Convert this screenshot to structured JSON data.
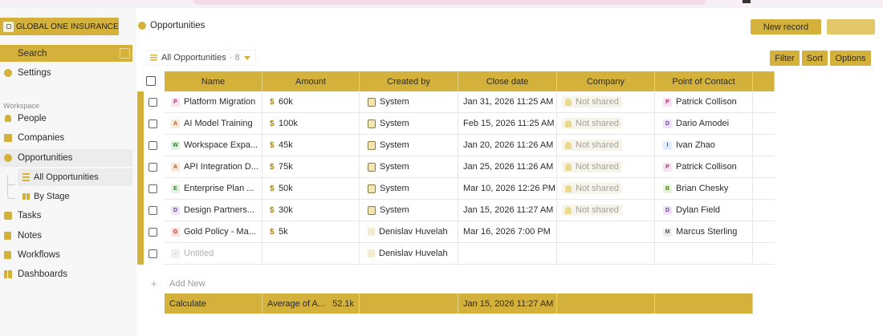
{
  "workspace": {
    "name": "GLOBAL ONE INSURANCE"
  },
  "sidebar": {
    "search_label": "Search",
    "settings_label": "Settings",
    "section_label": "Workspace",
    "items": [
      "People",
      "Companies",
      "Opportunities"
    ],
    "subviews": [
      "All Opportunities",
      "By Stage"
    ],
    "items2": [
      "Tasks",
      "Notes",
      "Workflows",
      "Dashboards"
    ]
  },
  "header": {
    "breadcrumb": "Opportunities",
    "new_record": "New record"
  },
  "view": {
    "name": "All Opportunities",
    "count": "· 8",
    "filter": "Filter",
    "sort": "Sort",
    "options": "Options"
  },
  "columns": [
    "Name",
    "Amount",
    "Created by",
    "Close date",
    "Company",
    "Point of Contact"
  ],
  "rows": [
    {
      "initial": "P",
      "name": "Platform Migration",
      "amount": "60k",
      "created_by": "System",
      "close_date": "Jan 31, 2026 11:25 AM",
      "company": "Not shared",
      "contact_initial": "P",
      "contact": "Patrick Collison"
    },
    {
      "initial": "A",
      "name": "AI Model Training",
      "amount": "100k",
      "created_by": "System",
      "close_date": "Feb 15, 2026 11:25 AM",
      "company": "Not shared",
      "contact_initial": "D",
      "contact": "Dario Amodei"
    },
    {
      "initial": "W",
      "name": "Workspace Expa...",
      "amount": "45k",
      "created_by": "System",
      "close_date": "Jan 20, 2026 11:26 AM",
      "company": "Not shared",
      "contact_initial": "I",
      "contact": "Ivan Zhao"
    },
    {
      "initial": "A",
      "name": "API Integration D...",
      "amount": "75k",
      "created_by": "System",
      "close_date": "Jan 25, 2026 11:26 AM",
      "company": "Not shared",
      "contact_initial": "P",
      "contact": "Patrick Collison"
    },
    {
      "initial": "E",
      "name": "Enterprise Plan ...",
      "amount": "50k",
      "created_by": "System",
      "close_date": "Mar 10, 2026 12:26 PM",
      "company": "Not shared",
      "contact_initial": "B",
      "contact": "Brian Chesky"
    },
    {
      "initial": "D",
      "name": "Design Partners...",
      "amount": "30k",
      "created_by": "System",
      "close_date": "Jan 15, 2026 11:27 AM",
      "company": "Not shared",
      "contact_initial": "D",
      "contact": "Dylan Field"
    },
    {
      "initial": "G",
      "name": "Gold Policy - Ma...",
      "amount": "5k",
      "created_by": "Denislav Huvelah",
      "close_date": "Mar 16, 2026 7:00 PM",
      "company": "",
      "contact_initial": "M",
      "contact": "Marcus Sterling"
    },
    {
      "initial": "-",
      "name": "Untitled",
      "amount": "",
      "created_by": "Denislav Huvelah",
      "close_date": "",
      "company": "",
      "contact_initial": "",
      "contact": ""
    }
  ],
  "add_new": "Add New",
  "calc": {
    "label": "Calculate",
    "amount_label": "Average of A...",
    "amount_value": "52.1k",
    "close_date": "Jan 15, 2026 11:27 AM"
  },
  "currency_symbol": "$",
  "badge_colors": {
    "P": [
      "#f8e3f0",
      "#a8306f"
    ],
    "A": [
      "#fde7d6",
      "#b3561a"
    ],
    "W": [
      "#e1f3e1",
      "#2f7a35"
    ],
    "E": [
      "#e4f2e4",
      "#367a3c"
    ],
    "D": [
      "#efe3fb",
      "#6a3aa8"
    ],
    "G": [
      "#fde2e2",
      "#b22d2d"
    ],
    "I": [
      "#e0ecfb",
      "#2f5fa8"
    ],
    "B": [
      "#e7f3df",
      "#4b7a26"
    ],
    "M": [
      "#eeeeee",
      "#555555"
    ],
    "-": [
      "#f0f0f0",
      "#aaaaaa"
    ]
  }
}
